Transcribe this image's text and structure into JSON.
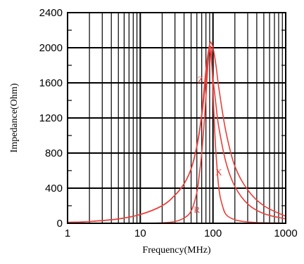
{
  "chart_data": {
    "type": "line",
    "xlabel": "Frequency(MHz)",
    "ylabel": "Impedance(Ohm)",
    "xscale": "log",
    "xlim": [
      1,
      1000
    ],
    "ylim": [
      0,
      2400
    ],
    "x_ticks": [
      "1",
      "10",
      "100",
      "1000"
    ],
    "y_ticks": [
      "0",
      "400",
      "800",
      "1200",
      "1600",
      "2000",
      "2400"
    ],
    "grid": true,
    "legend": "none",
    "colors": {
      "series": "#e8403a",
      "grid": "#000000"
    },
    "series": [
      {
        "name": "Z",
        "label_at": [
          67,
          1600
        ],
        "x": [
          1,
          2,
          5,
          10,
          20,
          30,
          40,
          50,
          60,
          70,
          80,
          90,
          95,
          100,
          110,
          120,
          150,
          200,
          300,
          500,
          1000
        ],
        "y": [
          10,
          20,
          50,
          100,
          200,
          320,
          450,
          620,
          880,
          1250,
          1750,
          2040,
          2050,
          2000,
          1800,
          1550,
          1050,
          650,
          380,
          200,
          80
        ]
      },
      {
        "name": "X",
        "label_at": [
          120,
          550
        ],
        "x": [
          1,
          2,
          5,
          10,
          20,
          30,
          40,
          50,
          60,
          70,
          80,
          85,
          90,
          95,
          100,
          110,
          120,
          150,
          200,
          300,
          500,
          1000
        ],
        "y": [
          10,
          20,
          50,
          100,
          200,
          320,
          450,
          620,
          870,
          1220,
          1650,
          1880,
          1980,
          1850,
          1650,
          1350,
          1100,
          700,
          420,
          220,
          110,
          50
        ]
      },
      {
        "name": "R",
        "label_at": [
          60,
          120
        ],
        "x": [
          1,
          10,
          20,
          30,
          40,
          50,
          60,
          65,
          70,
          75,
          80,
          85,
          90,
          95,
          100,
          110,
          130,
          200,
          1000
        ],
        "y": [
          0,
          0,
          5,
          20,
          60,
          140,
          350,
          560,
          800,
          1100,
          1450,
          1800,
          2000,
          1950,
          1500,
          800,
          250,
          40,
          0
        ]
      }
    ]
  }
}
